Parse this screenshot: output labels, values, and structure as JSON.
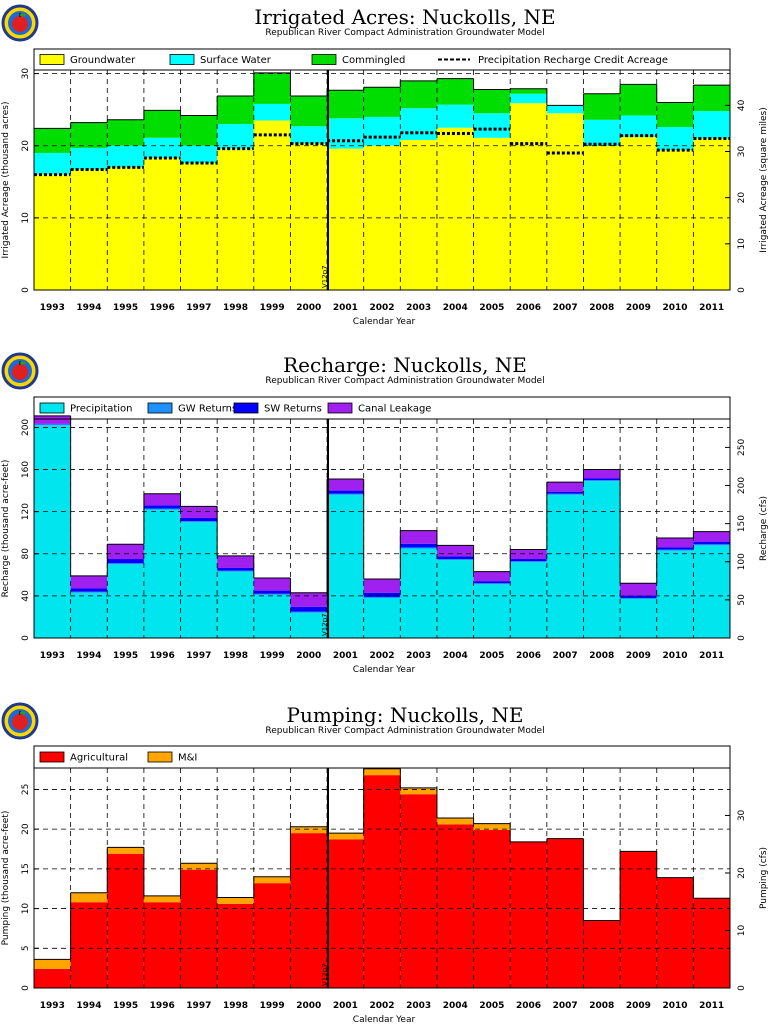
{
  "chart_data": [
    {
      "id": "irrigated",
      "type": "bar",
      "stacked": true,
      "title": "Irrigated Acres: Nuckolls, NE",
      "subtitle": "Republican River Compact Administration Groundwater Model",
      "xlabel": "Calendar Year",
      "ylabel": "Irrigated Acreage (thousand acres)",
      "ylabel_right": "Irrigated Acreage (square miles)",
      "ylim": [
        0,
        30.5
      ],
      "yticks": [
        0,
        10.0,
        20.0,
        30.0
      ],
      "yticks_right": [
        0,
        10.0,
        20.0,
        30.0,
        40.0
      ],
      "right_axis_factor": 1.5625,
      "marker_label": "V12p7",
      "categories": [
        "1993",
        "1994",
        "1995",
        "1996",
        "1997",
        "1998",
        "1999",
        "2000",
        "2001",
        "2002",
        "2003",
        "2004",
        "2005",
        "2006",
        "2007",
        "2008",
        "2009",
        "2010",
        "2011"
      ],
      "series": [
        {
          "name": "Groundwater",
          "color": "#ffff00",
          "values": [
            16.0,
            16.7,
            17.0,
            18.3,
            17.6,
            19.6,
            23.5,
            20.3,
            19.6,
            20.0,
            20.8,
            22.5,
            21.1,
            25.9,
            24.5,
            20.0,
            21.2,
            19.4,
            21.0
          ]
        },
        {
          "name": "Surface Water",
          "color": "#00ffff",
          "values": [
            3.0,
            3.0,
            3.0,
            2.8,
            2.4,
            3.4,
            2.3,
            2.4,
            4.2,
            4.0,
            4.4,
            3.2,
            3.4,
            1.3,
            1.1,
            3.6,
            3.0,
            3.2,
            3.8
          ]
        },
        {
          "name": "Commingled",
          "color": "#00dd00",
          "values": [
            3.4,
            3.5,
            3.6,
            3.8,
            4.2,
            3.9,
            4.3,
            4.2,
            3.9,
            4.1,
            3.8,
            3.6,
            3.3,
            0.7,
            0.0,
            3.6,
            4.3,
            3.4,
            3.6
          ]
        }
      ],
      "line_series": {
        "name": "Precipitation Recharge Credit Acreage",
        "color": "#000000",
        "values": [
          16.0,
          16.7,
          17.0,
          18.3,
          17.6,
          19.6,
          21.5,
          20.3,
          20.7,
          21.2,
          21.8,
          21.7,
          22.3,
          20.3,
          19.0,
          20.2,
          21.4,
          19.4,
          21.0
        ]
      }
    },
    {
      "id": "recharge",
      "type": "bar",
      "stacked": true,
      "title": "Recharge: Nuckolls, NE",
      "subtitle": "Republican River Compact Administration Groundwater Model",
      "xlabel": "Calendar Year",
      "ylabel": "Recharge (thousand acre-feet)",
      "ylabel_right": "Recharge (cfs)",
      "ylim": [
        0,
        208
      ],
      "yticks": [
        0,
        40.0,
        80.0,
        120,
        160,
        200
      ],
      "yticks_right": [
        0,
        50.0,
        100,
        150,
        200,
        250
      ],
      "right_axis_factor": 1.381,
      "marker_label": "V12p7",
      "categories": [
        "1993",
        "1994",
        "1995",
        "1996",
        "1997",
        "1998",
        "1999",
        "2000",
        "2001",
        "2002",
        "2003",
        "2004",
        "2005",
        "2006",
        "2007",
        "2008",
        "2009",
        "2010",
        "2011"
      ],
      "series": [
        {
          "name": "Precipitation",
          "color": "#00e5ee",
          "values": [
            202,
            43,
            70,
            122,
            110,
            63,
            41,
            24,
            136,
            38,
            85,
            74,
            51,
            72,
            136,
            149,
            37,
            83,
            88
          ]
        },
        {
          "name": "GW Returns",
          "color": "#1e90ff",
          "values": [
            1.0,
            1.0,
            1.0,
            1.0,
            1.0,
            1.0,
            1.0,
            1.0,
            1.0,
            1.0,
            1.0,
            1.0,
            1.0,
            1.0,
            1.0,
            1.0,
            1.0,
            1.0,
            1.0
          ]
        },
        {
          "name": "SW Returns",
          "color": "#0000ff",
          "values": [
            0.5,
            3.0,
            4.0,
            3.0,
            3.0,
            2.5,
            3.0,
            4.5,
            3.0,
            4.0,
            3.5,
            2.5,
            2.0,
            2.0,
            2.0,
            1.5,
            2.5,
            2.0,
            2.5
          ]
        },
        {
          "name": "Canal Leakage",
          "color": "#a020f0",
          "values": [
            7.5,
            12.0,
            14.0,
            11.0,
            11.0,
            11.5,
            12.0,
            13.5,
            11.0,
            13.0,
            12.5,
            10.5,
            9.0,
            9.0,
            9.0,
            8.5,
            11.5,
            9.0,
            9.5
          ]
        }
      ]
    },
    {
      "id": "pumping",
      "type": "bar",
      "stacked": true,
      "title": "Pumping: Nuckolls, NE",
      "subtitle": "Republican River Compact Administration Groundwater Model",
      "xlabel": "Calendar Year",
      "ylabel": "Pumping (thousand acre-feet)",
      "ylabel_right": "Pumping (cfs)",
      "ylim": [
        0,
        27.7
      ],
      "yticks": [
        0,
        5.0,
        10.0,
        15.0,
        20.0,
        25.0
      ],
      "yticks_right": [
        0,
        10.0,
        20.0,
        30.0
      ],
      "right_axis_factor": 1.381,
      "marker_label": "V12p7",
      "categories": [
        "1993",
        "1994",
        "1995",
        "1996",
        "1997",
        "1998",
        "1999",
        "2000",
        "2001",
        "2002",
        "2003",
        "2004",
        "2005",
        "2006",
        "2007",
        "2008",
        "2009",
        "2010",
        "2011"
      ],
      "series": [
        {
          "name": "Agricultural",
          "color": "#ff0000",
          "values": [
            2.4,
            10.8,
            16.9,
            10.8,
            14.9,
            10.6,
            13.2,
            19.5,
            18.7,
            26.8,
            24.4,
            20.6,
            19.9,
            18.4,
            18.8,
            8.5,
            17.2,
            13.9,
            11.3
          ]
        },
        {
          "name": "M&I",
          "color": "#ffa500",
          "values": [
            1.2,
            1.2,
            0.8,
            0.8,
            0.8,
            0.8,
            0.8,
            0.8,
            0.8,
            0.8,
            0.8,
            0.8,
            0.8,
            0.0,
            0.0,
            0.0,
            0.0,
            0.0,
            0.0
          ]
        }
      ]
    }
  ]
}
